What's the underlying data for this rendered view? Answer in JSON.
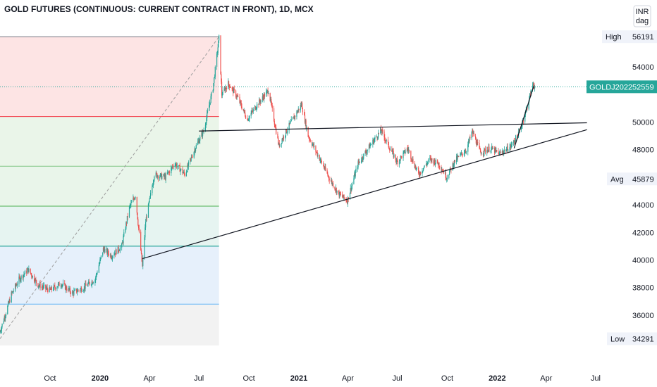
{
  "chart_data": {
    "type": "candlestick",
    "title": "GOLD FUTURES (CONTINUOUS: CURRENT CONTRACT IN FRONT), 1D, MCX",
    "currency": "INR",
    "unit": "dag",
    "x_ticks": [
      "Oct",
      "2020",
      "Apr",
      "Jul",
      "Oct",
      "2021",
      "Apr",
      "Jul",
      "Oct",
      "2022",
      "Apr",
      "Jul"
    ],
    "y_ticks": [
      36000,
      38000,
      40000,
      42000,
      44000,
      46000,
      48000,
      50000,
      52000,
      54000
    ],
    "ylim": [
      33800,
      57300
    ],
    "x_range": [
      "2019-07-01",
      "2022-08-31"
    ],
    "price_tags": [
      {
        "label": "High",
        "value": 56191,
        "display": "56191"
      },
      {
        "label": "Avg",
        "value": 45879,
        "display": "45879"
      },
      {
        "label": "Low",
        "value": 34291,
        "display": "34291"
      },
      {
        "label": "GOLDJ2022",
        "value": 52559,
        "display": "52559",
        "color": "#26a69a"
      }
    ],
    "fib_levels": [
      56191,
      50400,
      46800,
      43900,
      41000,
      36800
    ],
    "trend_lines": [
      {
        "from": {
          "date": "2020-07-01",
          "value": 49350
        },
        "to": {
          "date": "2022-06-15",
          "value": 49950
        }
      },
      {
        "from": {
          "date": "2020-03-19",
          "value": 40100
        },
        "to": {
          "date": "2022-06-15",
          "value": 49450
        }
      },
      {
        "from": {
          "date": "2022-02-01",
          "value": 48100
        },
        "to": {
          "date": "2022-03-09",
          "value": 52600
        }
      }
    ],
    "path_points": [
      {
        "date": "2019-07-01",
        "value": 34800
      },
      {
        "date": "2019-07-22",
        "value": 37500
      },
      {
        "date": "2019-08-05",
        "value": 38600
      },
      {
        "date": "2019-08-22",
        "value": 39300
      },
      {
        "date": "2019-09-09",
        "value": 38200
      },
      {
        "date": "2019-10-01",
        "value": 37800
      },
      {
        "date": "2019-10-21",
        "value": 38300
      },
      {
        "date": "2019-11-11",
        "value": 37600
      },
      {
        "date": "2019-12-02",
        "value": 38000
      },
      {
        "date": "2019-12-23",
        "value": 38600
      },
      {
        "date": "2020-01-07",
        "value": 40800
      },
      {
        "date": "2020-01-22",
        "value": 40300
      },
      {
        "date": "2020-02-10",
        "value": 41000
      },
      {
        "date": "2020-02-24",
        "value": 43800
      },
      {
        "date": "2020-03-06",
        "value": 44700
      },
      {
        "date": "2020-03-19",
        "value": 39500
      },
      {
        "date": "2020-03-25",
        "value": 42800
      },
      {
        "date": "2020-04-10",
        "value": 46200
      },
      {
        "date": "2020-04-30",
        "value": 46000
      },
      {
        "date": "2020-05-18",
        "value": 47000
      },
      {
        "date": "2020-06-05",
        "value": 46200
      },
      {
        "date": "2020-06-25",
        "value": 48200
      },
      {
        "date": "2020-07-10",
        "value": 49400
      },
      {
        "date": "2020-07-27",
        "value": 52500
      },
      {
        "date": "2020-08-07",
        "value": 56100
      },
      {
        "date": "2020-08-12",
        "value": 52000
      },
      {
        "date": "2020-08-24",
        "value": 52800
      },
      {
        "date": "2020-09-10",
        "value": 51800
      },
      {
        "date": "2020-09-28",
        "value": 50200
      },
      {
        "date": "2020-10-15",
        "value": 51200
      },
      {
        "date": "2020-11-06",
        "value": 52300
      },
      {
        "date": "2020-11-25",
        "value": 48300
      },
      {
        "date": "2020-12-15",
        "value": 49800
      },
      {
        "date": "2021-01-06",
        "value": 51300
      },
      {
        "date": "2021-01-18",
        "value": 49000
      },
      {
        "date": "2021-02-05",
        "value": 47600
      },
      {
        "date": "2021-02-25",
        "value": 46000
      },
      {
        "date": "2021-03-15",
        "value": 44800
      },
      {
        "date": "2021-03-31",
        "value": 44300
      },
      {
        "date": "2021-04-20",
        "value": 47000
      },
      {
        "date": "2021-05-12",
        "value": 48300
      },
      {
        "date": "2021-06-01",
        "value": 49400
      },
      {
        "date": "2021-06-16",
        "value": 48200
      },
      {
        "date": "2021-07-01",
        "value": 47100
      },
      {
        "date": "2021-07-20",
        "value": 48100
      },
      {
        "date": "2021-08-09",
        "value": 46200
      },
      {
        "date": "2021-08-30",
        "value": 47300
      },
      {
        "date": "2021-09-15",
        "value": 47000
      },
      {
        "date": "2021-09-30",
        "value": 46000
      },
      {
        "date": "2021-10-15",
        "value": 47200
      },
      {
        "date": "2021-11-05",
        "value": 48000
      },
      {
        "date": "2021-11-16",
        "value": 49300
      },
      {
        "date": "2021-12-01",
        "value": 47800
      },
      {
        "date": "2021-12-20",
        "value": 48100
      },
      {
        "date": "2022-01-05",
        "value": 47700
      },
      {
        "date": "2022-01-25",
        "value": 48200
      },
      {
        "date": "2022-02-10",
        "value": 49200
      },
      {
        "date": "2022-02-24",
        "value": 51000
      },
      {
        "date": "2022-03-08",
        "value": 52800
      },
      {
        "date": "2022-03-11",
        "value": 52559
      }
    ]
  }
}
